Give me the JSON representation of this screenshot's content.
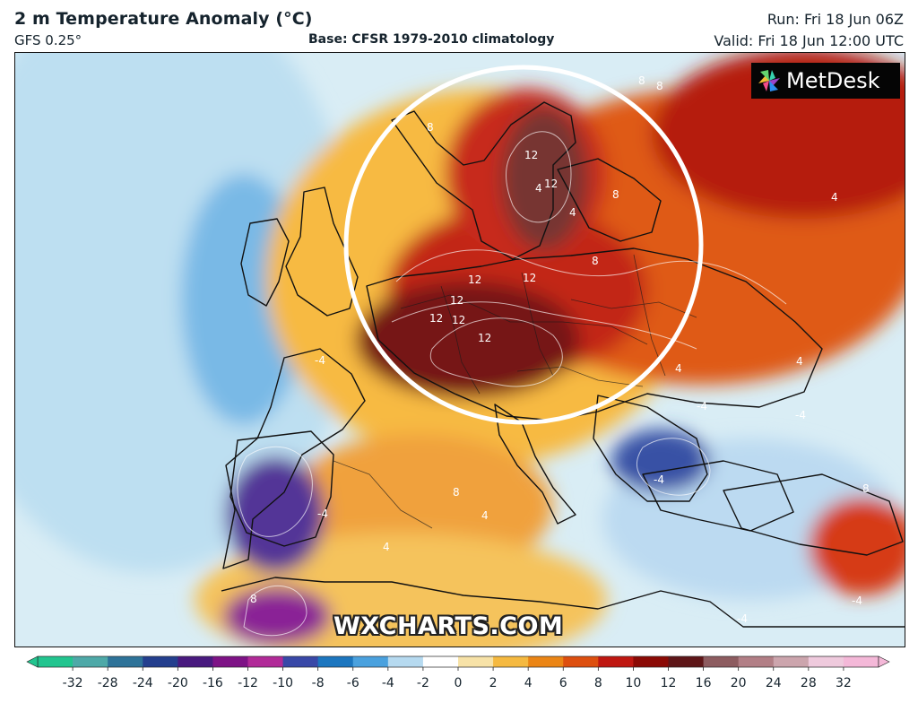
{
  "header": {
    "title": "2 m Temperature Anomaly (°C)",
    "model": "GFS 0.25°",
    "base": "Base: CFSR 1979-2010 climatology",
    "run": "Run: Fri 18 Jun 06Z",
    "valid": "Valid: Fri 18 Jun 12:00 UTC"
  },
  "map": {
    "logo_text": "MetDesk",
    "watermark": "WXCHARTS.COM",
    "highlight_circle": true,
    "icons": {
      "logo": "pinwheel-logo-icon"
    },
    "annotations": [
      "12",
      "12",
      "12",
      "12",
      "12",
      "12",
      "12",
      "12",
      "8",
      "8",
      "8",
      "8",
      "8",
      "8",
      "8",
      "8",
      "4",
      "4",
      "4",
      "4",
      "4",
      "4",
      "4",
      "-4",
      "-4",
      "-4",
      "-4",
      "-4",
      "-4",
      "-4"
    ]
  },
  "legend": {
    "ticks": [
      "-32",
      "-28",
      "-24",
      "-20",
      "-16",
      "-12",
      "-10",
      "-8",
      "-6",
      "-4",
      "-2",
      "0",
      "2",
      "4",
      "6",
      "8",
      "10",
      "12",
      "16",
      "20",
      "24",
      "28",
      "32"
    ],
    "colors": [
      "#22c58f",
      "#4ea9a8",
      "#2e7399",
      "#243f8e",
      "#491a7f",
      "#7e1386",
      "#b12a98",
      "#3948a7",
      "#1c76bf",
      "#4aa1de",
      "#b6daf0",
      "#ffffff",
      "#f7e2a7",
      "#f5b940",
      "#eb8515",
      "#dd4f0f",
      "#bf1711",
      "#8b0a05",
      "#5e1618",
      "#8d5c60",
      "#b27f86",
      "#cca5ad",
      "#efcadd",
      "#f4b8d8"
    ]
  }
}
